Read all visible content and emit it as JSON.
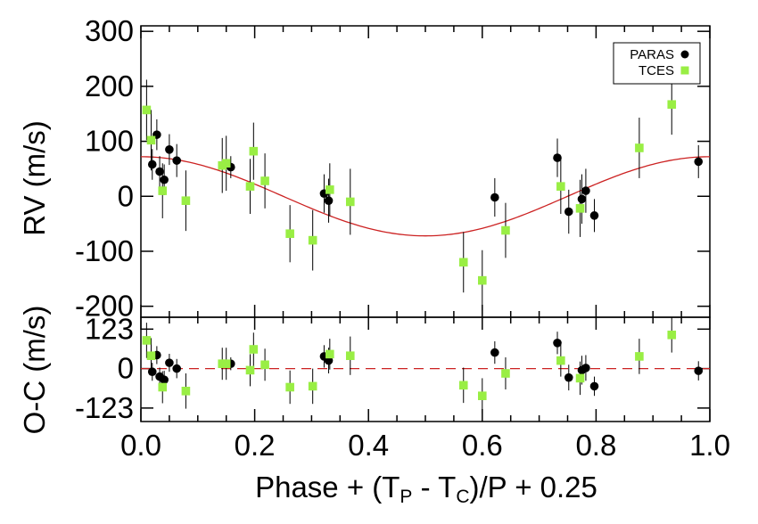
{
  "chart_data": [
    {
      "panel": "rv",
      "type": "scatter",
      "ylabel": "RV (m/s)",
      "xlim": [
        0.0,
        1.0
      ],
      "ylim": [
        -220,
        310
      ],
      "yticks": [
        300,
        200,
        100,
        0,
        -100,
        -200
      ],
      "ytick_labels": [
        "300",
        "200",
        "100",
        "0",
        "-100",
        "-200"
      ],
      "legend": {
        "placement": "top-right",
        "entries": [
          "PARAS",
          "TCES"
        ]
      },
      "model": {
        "type": "sinusoid",
        "amplitude": 72,
        "phase_of_min": 0.5,
        "color": "#cc2222"
      },
      "series": [
        {
          "name": "PARAS",
          "marker": "circle",
          "color": "#000000",
          "points": [
            {
              "x": 0.02,
              "y": 58,
              "err": 28
            },
            {
              "x": 0.028,
              "y": 112,
              "err": 28
            },
            {
              "x": 0.033,
              "y": 45,
              "err": 28
            },
            {
              "x": 0.041,
              "y": 30,
              "err": 28
            },
            {
              "x": 0.05,
              "y": 85,
              "err": 28
            },
            {
              "x": 0.063,
              "y": 65,
              "err": 30
            },
            {
              "x": 0.158,
              "y": 53,
              "err": 20
            },
            {
              "x": 0.322,
              "y": 5,
              "err": 35
            },
            {
              "x": 0.33,
              "y": -8,
              "err": 40
            },
            {
              "x": 0.622,
              "y": -2,
              "err": 35
            },
            {
              "x": 0.732,
              "y": 70,
              "err": 35
            },
            {
              "x": 0.752,
              "y": -28,
              "err": 40
            },
            {
              "x": 0.775,
              "y": -5,
              "err": 45
            },
            {
              "x": 0.782,
              "y": 10,
              "err": 40
            },
            {
              "x": 0.797,
              "y": -35,
              "err": 30
            },
            {
              "x": 0.98,
              "y": 63,
              "err": 30
            }
          ]
        },
        {
          "name": "TCES",
          "marker": "square",
          "color": "#99ee44",
          "points": [
            {
              "x": 0.01,
              "y": 157,
              "err": 55
            },
            {
              "x": 0.018,
              "y": 102,
              "err": 55
            },
            {
              "x": 0.038,
              "y": 10,
              "err": 50
            },
            {
              "x": 0.079,
              "y": -8,
              "err": 55
            },
            {
              "x": 0.143,
              "y": 56,
              "err": 50
            },
            {
              "x": 0.15,
              "y": 60,
              "err": 50
            },
            {
              "x": 0.192,
              "y": 18,
              "err": 50
            },
            {
              "x": 0.198,
              "y": 82,
              "err": 52
            },
            {
              "x": 0.218,
              "y": 28,
              "err": 50
            },
            {
              "x": 0.262,
              "y": -68,
              "err": 52
            },
            {
              "x": 0.302,
              "y": -80,
              "err": 55
            },
            {
              "x": 0.332,
              "y": 12,
              "err": 48
            },
            {
              "x": 0.368,
              "y": -10,
              "err": 60
            },
            {
              "x": 0.567,
              "y": -120,
              "err": 55
            },
            {
              "x": 0.6,
              "y": -153,
              "err": 55
            },
            {
              "x": 0.641,
              "y": -62,
              "err": 50
            },
            {
              "x": 0.738,
              "y": 18,
              "err": 50
            },
            {
              "x": 0.772,
              "y": -22,
              "err": 52
            },
            {
              "x": 0.876,
              "y": 88,
              "err": 55
            },
            {
              "x": 0.933,
              "y": 167,
              "err": 55
            }
          ]
        }
      ]
    },
    {
      "panel": "residuals",
      "type": "scatter",
      "xlabel_parts": {
        "prefix": "Phase + (T",
        "sub1": "P",
        "mid": " - T",
        "sub2": "C",
        "suffix": ")/P + 0.25"
      },
      "ylabel": "O-C (m/s)",
      "xlim": [
        0.0,
        1.0
      ],
      "ylim": [
        -165,
        160
      ],
      "xticks": [
        0.0,
        0.2,
        0.4,
        0.6,
        0.8,
        1.0
      ],
      "xtick_labels": [
        "0.0",
        "0.2",
        "0.4",
        "0.6",
        "0.8",
        "1.0"
      ],
      "yticks": [
        123,
        0,
        -123
      ],
      "ytick_labels": [
        "123",
        "0",
        "-123"
      ],
      "zero_line": {
        "y": 0,
        "style": "dashed",
        "color": "#cc2222"
      },
      "series": [
        {
          "name": "PARAS",
          "marker": "circle",
          "color": "#000000",
          "points": [
            {
              "x": 0.02,
              "y": -10,
              "err": 28
            },
            {
              "x": 0.028,
              "y": 42,
              "err": 28
            },
            {
              "x": 0.033,
              "y": -25,
              "err": 28
            },
            {
              "x": 0.041,
              "y": -35,
              "err": 28
            },
            {
              "x": 0.05,
              "y": 18,
              "err": 28
            },
            {
              "x": 0.063,
              "y": 0,
              "err": 30
            },
            {
              "x": 0.158,
              "y": 15,
              "err": 20
            },
            {
              "x": 0.322,
              "y": 38,
              "err": 35
            },
            {
              "x": 0.33,
              "y": 25,
              "err": 40
            },
            {
              "x": 0.622,
              "y": 50,
              "err": 35
            },
            {
              "x": 0.732,
              "y": 80,
              "err": 35
            },
            {
              "x": 0.752,
              "y": -28,
              "err": 40
            },
            {
              "x": 0.775,
              "y": -5,
              "err": 45
            },
            {
              "x": 0.782,
              "y": 2,
              "err": 40
            },
            {
              "x": 0.797,
              "y": -55,
              "err": 30
            },
            {
              "x": 0.98,
              "y": -7,
              "err": 30
            }
          ]
        },
        {
          "name": "TCES",
          "marker": "square",
          "color": "#99ee44",
          "points": [
            {
              "x": 0.01,
              "y": 88,
              "err": 55
            },
            {
              "x": 0.018,
              "y": 40,
              "err": 55
            },
            {
              "x": 0.038,
              "y": -58,
              "err": 50
            },
            {
              "x": 0.079,
              "y": -70,
              "err": 55
            },
            {
              "x": 0.143,
              "y": 15,
              "err": 50
            },
            {
              "x": 0.15,
              "y": 15,
              "err": 50
            },
            {
              "x": 0.192,
              "y": -5,
              "err": 50
            },
            {
              "x": 0.198,
              "y": 60,
              "err": 52
            },
            {
              "x": 0.218,
              "y": 12,
              "err": 50
            },
            {
              "x": 0.262,
              "y": -58,
              "err": 52
            },
            {
              "x": 0.302,
              "y": -55,
              "err": 55
            },
            {
              "x": 0.332,
              "y": 45,
              "err": 48
            },
            {
              "x": 0.368,
              "y": 40,
              "err": 60
            },
            {
              "x": 0.567,
              "y": -52,
              "err": 55
            },
            {
              "x": 0.6,
              "y": -85,
              "err": 55
            },
            {
              "x": 0.641,
              "y": -15,
              "err": 50
            },
            {
              "x": 0.738,
              "y": 25,
              "err": 50
            },
            {
              "x": 0.772,
              "y": -30,
              "err": 52
            },
            {
              "x": 0.876,
              "y": 38,
              "err": 55
            },
            {
              "x": 0.933,
              "y": 105,
              "err": 55
            }
          ]
        }
      ]
    }
  ]
}
